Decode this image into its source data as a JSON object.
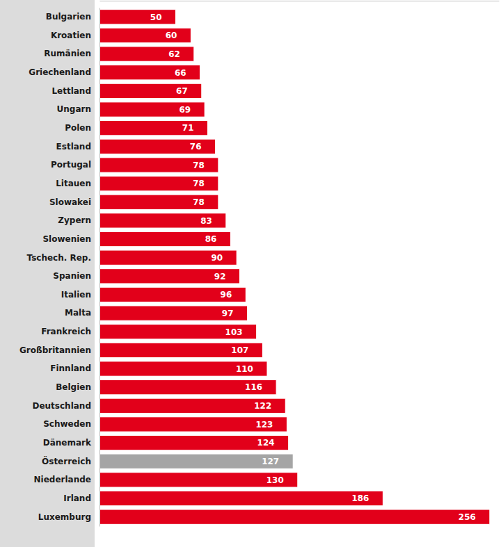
{
  "chart_data": {
    "type": "bar",
    "orientation": "horizontal",
    "categories": [
      "Bulgarien",
      "Kroatien",
      "Rumänien",
      "Griechenland",
      "Lettland",
      "Ungarn",
      "Polen",
      "Estland",
      "Portugal",
      "Litauen",
      "Slowakei",
      "Zypern",
      "Slowenien",
      "Tschech. Rep.",
      "Spanien",
      "Italien",
      "Malta",
      "Frankreich",
      "Großbritannien",
      "Finnland",
      "Belgien",
      "Deutschland",
      "Schweden",
      "Dänemark",
      "Österreich",
      "Niederlande",
      "Irland",
      "Luxemburg"
    ],
    "values": [
      50,
      60,
      62,
      66,
      67,
      69,
      71,
      76,
      78,
      78,
      78,
      83,
      86,
      90,
      92,
      96,
      97,
      103,
      107,
      110,
      116,
      122,
      123,
      124,
      127,
      130,
      186,
      256
    ],
    "colors": [
      "#e2001a",
      "#e2001a",
      "#e2001a",
      "#e2001a",
      "#e2001a",
      "#e2001a",
      "#e2001a",
      "#e2001a",
      "#e2001a",
      "#e2001a",
      "#e2001a",
      "#e2001a",
      "#e2001a",
      "#e2001a",
      "#e2001a",
      "#e2001a",
      "#e2001a",
      "#e2001a",
      "#e2001a",
      "#e2001a",
      "#e2001a",
      "#e2001a",
      "#e2001a",
      "#e2001a",
      "#a5a5a5",
      "#e2001a",
      "#e2001a",
      "#e2001a"
    ],
    "xlim": [
      0,
      262
    ],
    "data_labels": true,
    "tick_labels": "y",
    "grid": false
  }
}
